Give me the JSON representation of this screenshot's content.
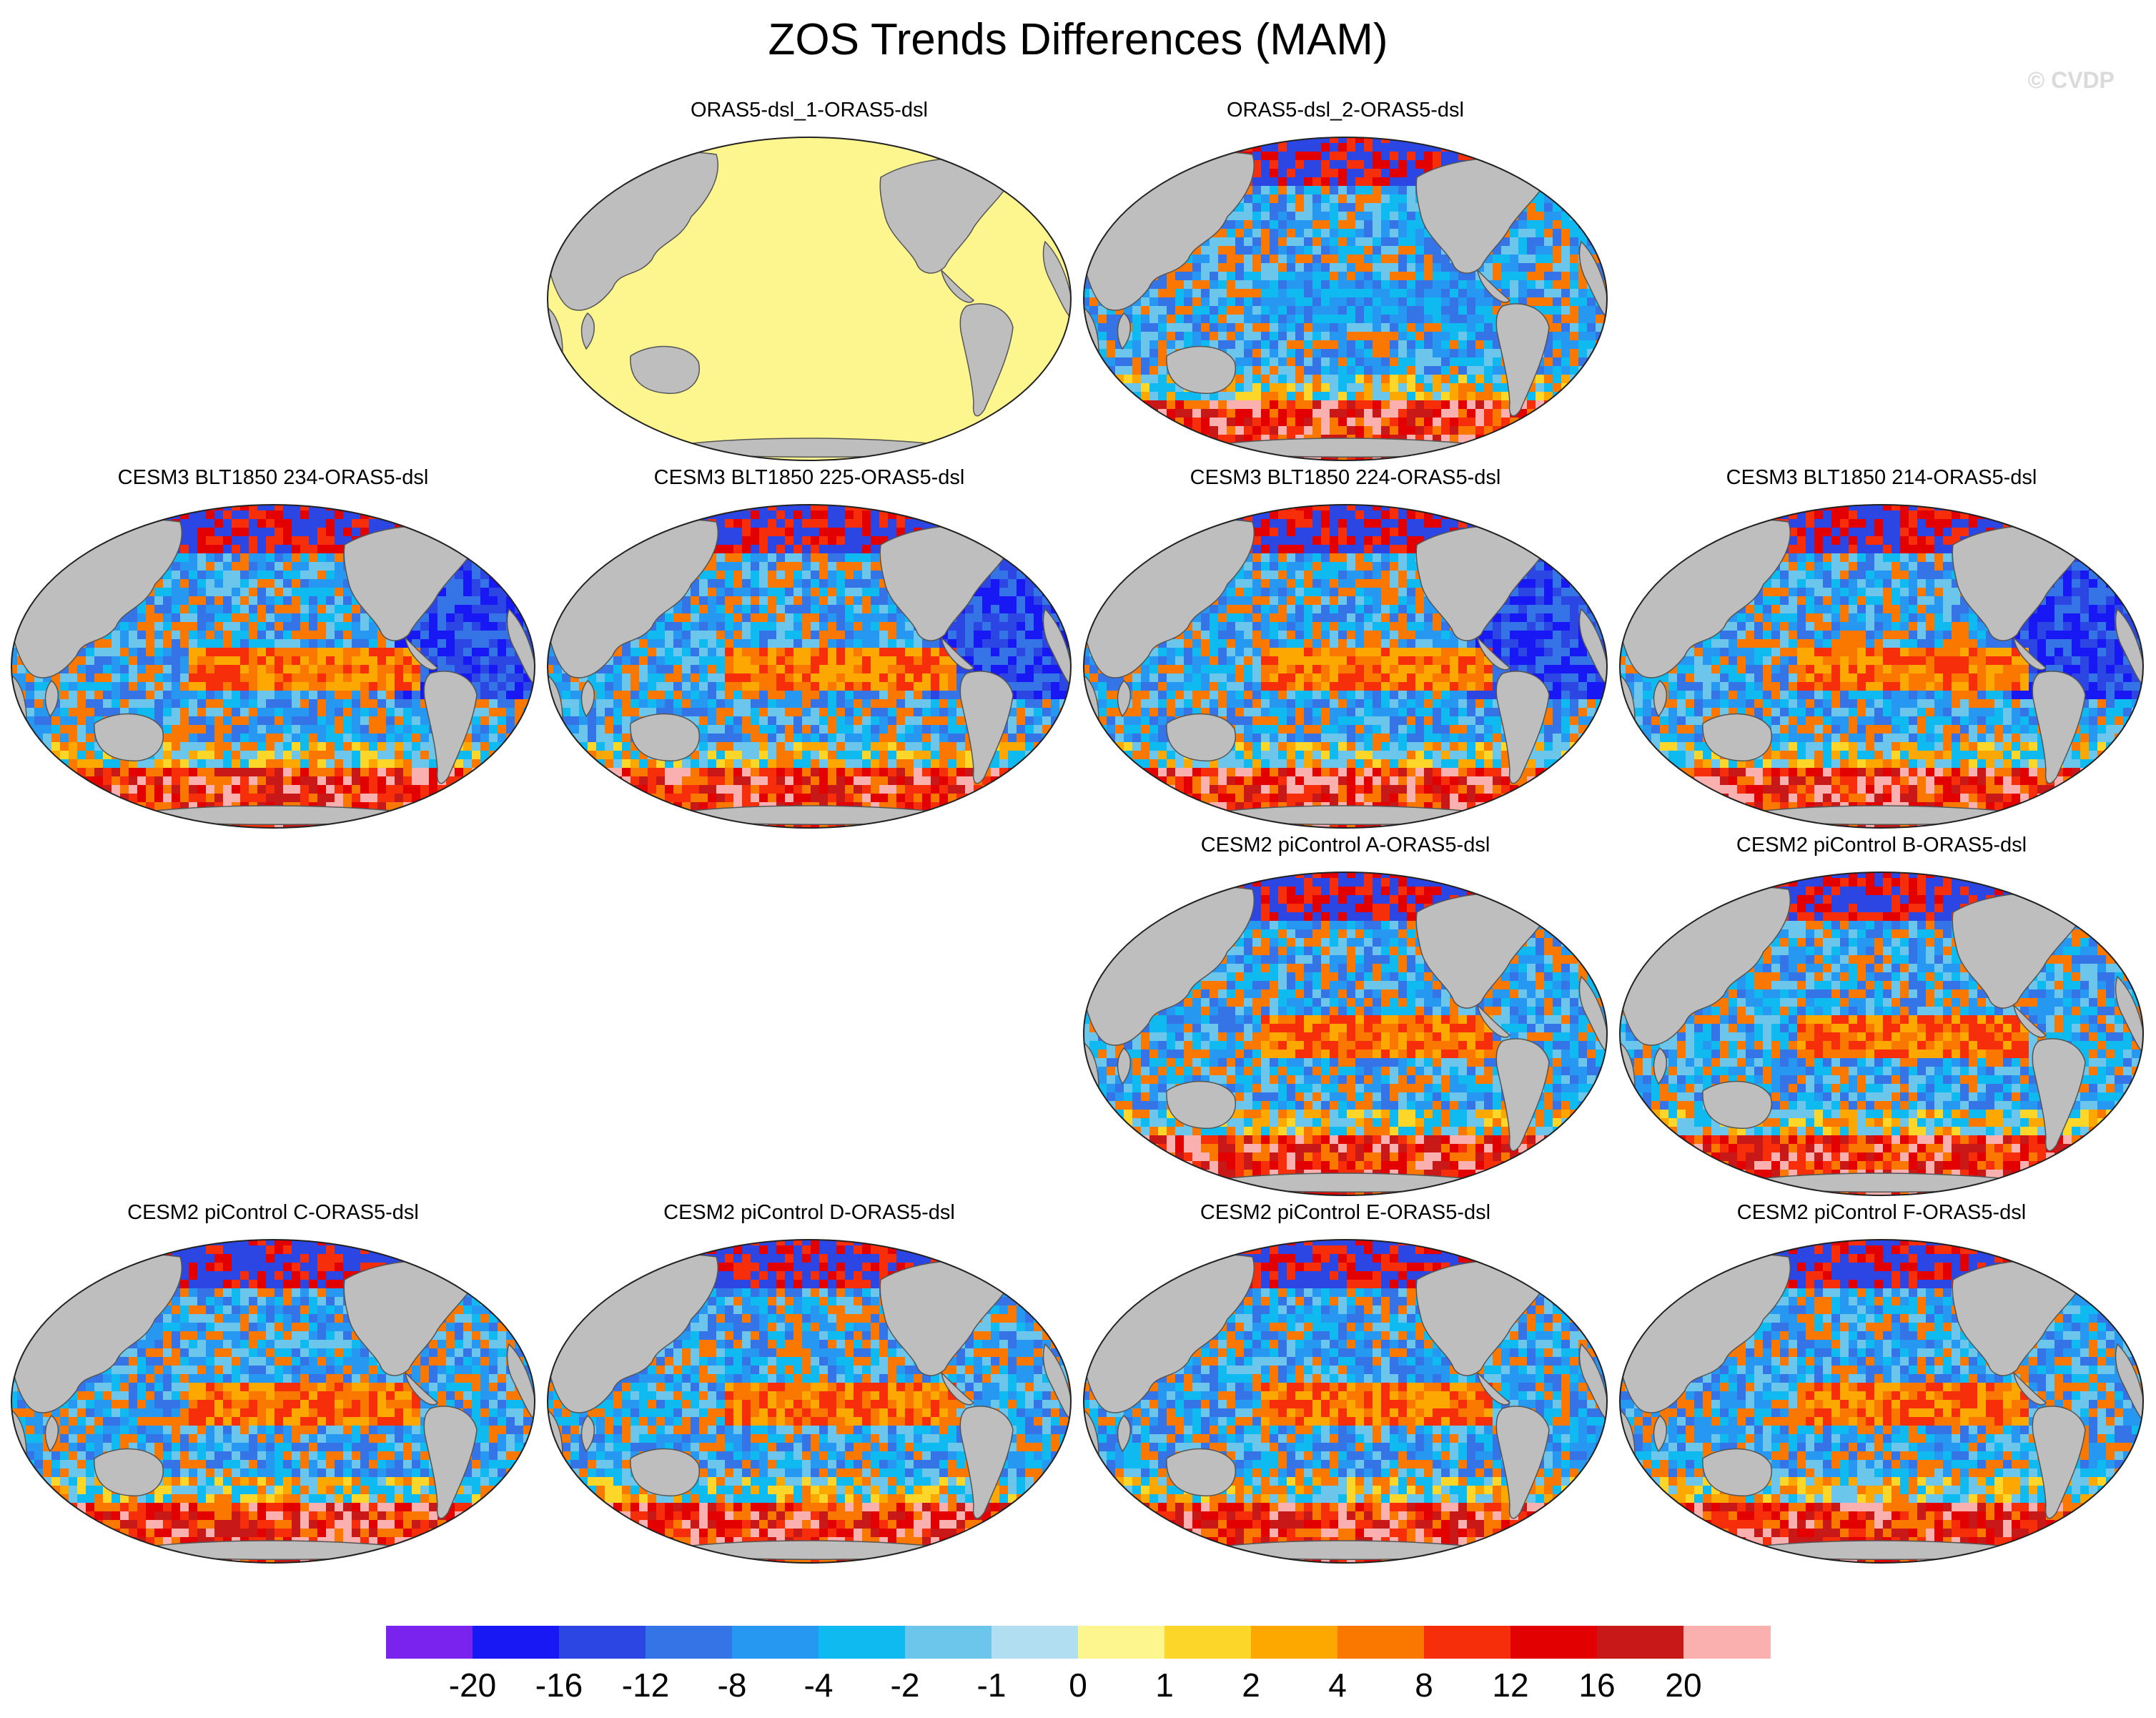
{
  "title": "ZOS Trends Differences (MAM)",
  "watermark": "© CVDP",
  "panels": [
    {
      "title": "ORAS5-dsl_1-ORAS5-dsl",
      "pattern": "uniform"
    },
    {
      "title": "ORAS5-dsl_2-ORAS5-dsl",
      "pattern": "mixed"
    },
    {
      "title": "CESM3 BLT1850 234-ORAS5-dsl",
      "pattern": "cesm3"
    },
    {
      "title": "CESM3 BLT1850 225-ORAS5-dsl",
      "pattern": "cesm3"
    },
    {
      "title": "CESM3 BLT1850 224-ORAS5-dsl",
      "pattern": "cesm3"
    },
    {
      "title": "CESM3 BLT1850 214-ORAS5-dsl",
      "pattern": "cesm3"
    },
    {
      "title": "CESM2 piControl A-ORAS5-dsl",
      "pattern": "cesm2"
    },
    {
      "title": "CESM2 piControl B-ORAS5-dsl",
      "pattern": "cesm2"
    },
    {
      "title": "CESM2 piControl C-ORAS5-dsl",
      "pattern": "cesm2"
    },
    {
      "title": "CESM2 piControl D-ORAS5-dsl",
      "pattern": "cesm2"
    },
    {
      "title": "CESM2 piControl E-ORAS5-dsl",
      "pattern": "cesm2"
    },
    {
      "title": "CESM2 piControl F-ORAS5-dsl",
      "pattern": "cesm2"
    }
  ],
  "colorbar": {
    "colors": [
      "#7a22ee",
      "#1818f5",
      "#2c46e3",
      "#3574e6",
      "#2698f2",
      "#0ebaf0",
      "#6cc6ec",
      "#b2def2",
      "#fdf58e",
      "#fdd62a",
      "#fca800",
      "#fb7800",
      "#f72e0a",
      "#e30000",
      "#c81818",
      "#fbb0b0"
    ],
    "labels": [
      "-20",
      "-16",
      "-12",
      "-8",
      "-4",
      "-2",
      "-1",
      "0",
      "1",
      "2",
      "4",
      "8",
      "12",
      "16",
      "20"
    ]
  },
  "land_color": "#bebebe"
}
